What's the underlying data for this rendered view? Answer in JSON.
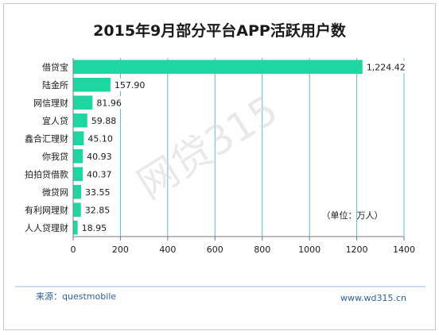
{
  "title": "2015年9月部分平台APP活跃用户数",
  "unit_label": "（单位：万人）",
  "source_label": "来源：questmobile",
  "website": "www.wd315.cn",
  "watermark": "网贷315",
  "colors": {
    "bar": "#1fd6a3",
    "grid": "#5fb8d4",
    "footer_source": "#2e5f9e",
    "footer_site": "#2e5f9e"
  },
  "chart_data": {
    "type": "bar",
    "orientation": "horizontal",
    "title": "2015年9月部分平台APP活跃用户数",
    "categories": [
      "借贷宝",
      "陆金所",
      "网信理财",
      "宜人贷",
      "鑫合汇理财",
      "你我贷",
      "拍拍贷借款",
      "微贷网",
      "有利网理财",
      "人人贷理财"
    ],
    "values": [
      1224.42,
      157.9,
      81.96,
      59.88,
      45.1,
      40.93,
      40.37,
      33.55,
      32.85,
      18.95
    ],
    "value_labels": [
      "1,224.42",
      "157.90",
      "81.96",
      "59.88",
      "45.10",
      "40.93",
      "40.37",
      "33.55",
      "32.85",
      "18.95"
    ],
    "xticks": [
      0,
      200,
      400,
      600,
      800,
      1000,
      1200,
      1400
    ],
    "xlim": [
      0,
      1400
    ],
    "grid": true,
    "legend": "none"
  }
}
